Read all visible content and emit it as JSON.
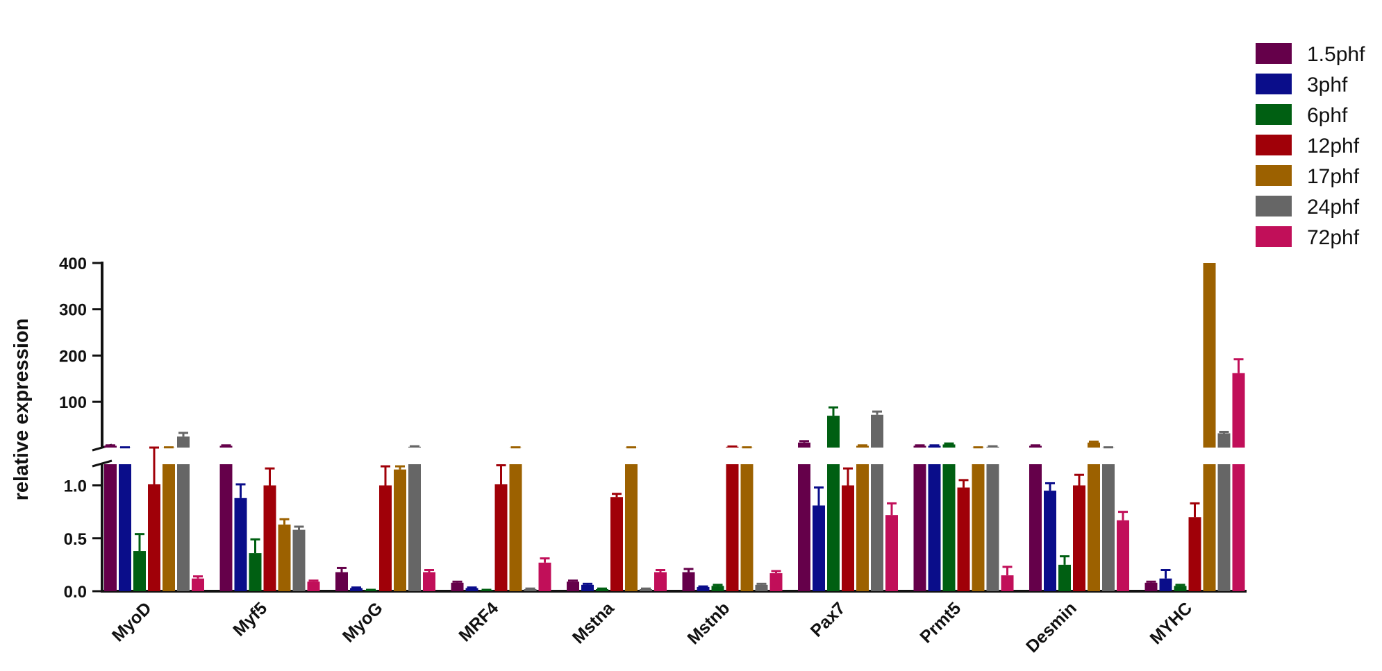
{
  "chart_data": {
    "type": "bar",
    "ylabel": "relative expression",
    "axis_break": true,
    "y_lower": {
      "range": [
        0,
        1.2
      ],
      "ticks": [
        0.0,
        0.5,
        1.0
      ],
      "tick_labels": [
        "0.0",
        "0.5",
        "1.0"
      ]
    },
    "y_upper": {
      "range": [
        1.2,
        400
      ],
      "ticks": [
        100,
        200,
        300,
        400
      ],
      "tick_labels": [
        "100",
        "200",
        "300",
        "400"
      ]
    },
    "legend_position": "top-right",
    "categories": [
      "MyoD",
      "Myf5",
      "MyoG",
      "MRF4",
      "Mstna",
      "Mstnb",
      "Pax7",
      "Prmt5",
      "Desmin",
      "MYHC"
    ],
    "series": [
      {
        "name": "1.5phf",
        "color": "#65004a",
        "values": [
          5,
          5,
          0.18,
          0.08,
          0.09,
          0.18,
          12,
          5,
          5,
          0.08
        ],
        "errors": [
          1,
          1,
          0.04,
          0.01,
          0.01,
          0.03,
          3,
          1,
          1,
          0.01
        ]
      },
      {
        "name": "3phf",
        "color": "#0a0d8a",
        "values": [
          1.5,
          0.88,
          0.03,
          0.03,
          0.06,
          0.04,
          0.81,
          5,
          0.95,
          0.12
        ],
        "errors": [
          0.2,
          0.13,
          0.005,
          0.005,
          0.01,
          0.005,
          0.17,
          1,
          0.07,
          0.08
        ]
      },
      {
        "name": "6phf",
        "color": "#005f12",
        "values": [
          0.38,
          0.36,
          0.01,
          0.01,
          0.02,
          0.05,
          70,
          8,
          0.25,
          0.05
        ],
        "errors": [
          0.16,
          0.13,
          0.003,
          0.003,
          0.005,
          0.01,
          18,
          2,
          0.08,
          0.01
        ]
      },
      {
        "name": "12phf",
        "color": "#a00008",
        "values": [
          1.01,
          1.0,
          1.0,
          1.01,
          0.89,
          3,
          1.0,
          0.98,
          1.0,
          0.7
        ],
        "errors": [
          0.2,
          0.16,
          0.18,
          0.18,
          0.03,
          0.5,
          0.16,
          0.07,
          0.1,
          0.13
        ]
      },
      {
        "name": "17phf",
        "color": "#9c6100",
        "values": [
          1.5,
          0.63,
          1.15,
          1.5,
          1.5,
          1.5,
          5,
          1.5,
          12,
          400
        ],
        "errors": [
          0.2,
          0.05,
          0.03,
          0.2,
          0.2,
          0.2,
          1,
          0.2,
          2,
          0
        ]
      },
      {
        "name": "24phf",
        "color": "#666666",
        "values": [
          25,
          0.58,
          3,
          0.02,
          0.02,
          0.06,
          72,
          3,
          1.5,
          32
        ],
        "errors": [
          8,
          0.03,
          1,
          0.005,
          0.005,
          0.01,
          7,
          1,
          0.2,
          3
        ]
      },
      {
        "name": "72phf",
        "color": "#c10f59",
        "values": [
          0.12,
          0.09,
          0.18,
          0.27,
          0.18,
          0.17,
          0.72,
          0.15,
          0.67,
          162
        ],
        "errors": [
          0.02,
          0.01,
          0.02,
          0.04,
          0.02,
          0.02,
          0.11,
          0.08,
          0.08,
          30
        ]
      }
    ]
  }
}
